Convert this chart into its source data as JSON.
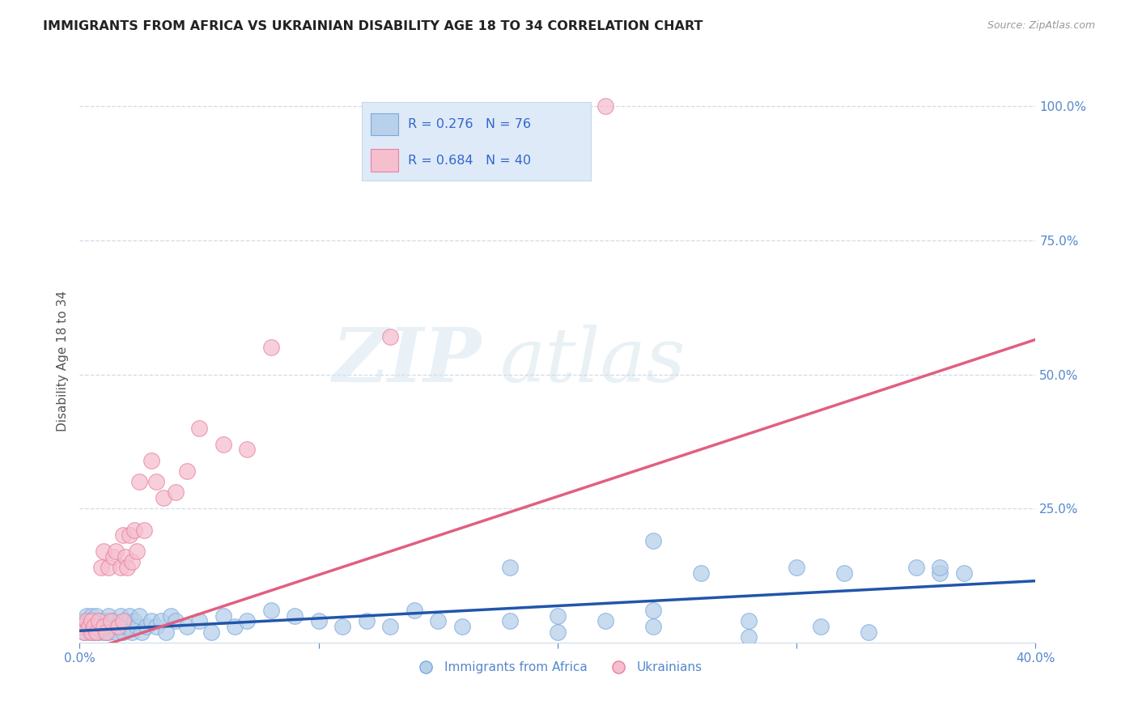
{
  "title": "IMMIGRANTS FROM AFRICA VS UKRAINIAN DISABILITY AGE 18 TO 34 CORRELATION CHART",
  "source": "Source: ZipAtlas.com",
  "ylabel": "Disability Age 18 to 34",
  "xlim": [
    0.0,
    0.4
  ],
  "ylim": [
    0.0,
    1.05
  ],
  "xtick_labels": [
    "0.0%",
    "",
    "",
    "",
    "40.0%"
  ],
  "xtick_vals": [
    0.0,
    0.1,
    0.2,
    0.3,
    0.4
  ],
  "ytick_labels_right": [
    "100.0%",
    "75.0%",
    "50.0%",
    "25.0%"
  ],
  "ytick_vals_right": [
    1.0,
    0.75,
    0.5,
    0.25
  ],
  "watermark_zip": "ZIP",
  "watermark_atlas": "atlas",
  "series1_label": "Immigrants from Africa",
  "series1_color": "#b8d0ea",
  "series1_edge_color": "#7aaadd",
  "series1_line_color": "#2255aa",
  "series1_R": 0.276,
  "series1_N": 76,
  "series2_label": "Ukrainians",
  "series2_color": "#f5bfce",
  "series2_edge_color": "#e880a0",
  "series2_line_color": "#e06080",
  "series2_R": 0.684,
  "series2_N": 40,
  "legend_box_color": "#deeaf8",
  "legend_text_color": "#3366cc",
  "title_color": "#222222",
  "axis_color": "#5588cc",
  "grid_color": "#d0dde8",
  "background_color": "#ffffff",
  "series1_x": [
    0.001,
    0.002,
    0.002,
    0.003,
    0.003,
    0.004,
    0.004,
    0.005,
    0.005,
    0.006,
    0.006,
    0.007,
    0.007,
    0.008,
    0.008,
    0.009,
    0.01,
    0.01,
    0.011,
    0.012,
    0.012,
    0.013,
    0.014,
    0.015,
    0.016,
    0.017,
    0.018,
    0.019,
    0.02,
    0.021,
    0.022,
    0.023,
    0.024,
    0.025,
    0.026,
    0.028,
    0.03,
    0.032,
    0.034,
    0.036,
    0.038,
    0.04,
    0.045,
    0.05,
    0.055,
    0.06,
    0.065,
    0.07,
    0.08,
    0.09,
    0.1,
    0.11,
    0.12,
    0.13,
    0.14,
    0.15,
    0.16,
    0.18,
    0.2,
    0.22,
    0.24,
    0.26,
    0.28,
    0.24,
    0.3,
    0.31,
    0.32,
    0.33,
    0.35,
    0.36,
    0.24,
    0.18,
    0.2,
    0.28,
    0.36,
    0.37
  ],
  "series1_y": [
    0.03,
    0.02,
    0.04,
    0.03,
    0.05,
    0.02,
    0.04,
    0.03,
    0.05,
    0.02,
    0.04,
    0.03,
    0.05,
    0.02,
    0.03,
    0.04,
    0.02,
    0.03,
    0.04,
    0.02,
    0.05,
    0.03,
    0.04,
    0.02,
    0.03,
    0.05,
    0.02,
    0.04,
    0.03,
    0.05,
    0.02,
    0.04,
    0.03,
    0.05,
    0.02,
    0.03,
    0.04,
    0.03,
    0.04,
    0.02,
    0.05,
    0.04,
    0.03,
    0.04,
    0.02,
    0.05,
    0.03,
    0.04,
    0.06,
    0.05,
    0.04,
    0.03,
    0.04,
    0.03,
    0.06,
    0.04,
    0.03,
    0.04,
    0.05,
    0.04,
    0.06,
    0.13,
    0.04,
    0.19,
    0.14,
    0.03,
    0.13,
    0.02,
    0.14,
    0.13,
    0.03,
    0.14,
    0.02,
    0.01,
    0.14,
    0.13
  ],
  "series2_x": [
    0.001,
    0.002,
    0.003,
    0.004,
    0.005,
    0.005,
    0.006,
    0.007,
    0.008,
    0.009,
    0.01,
    0.01,
    0.011,
    0.012,
    0.013,
    0.014,
    0.015,
    0.016,
    0.017,
    0.018,
    0.018,
    0.019,
    0.02,
    0.021,
    0.022,
    0.023,
    0.024,
    0.025,
    0.027,
    0.03,
    0.032,
    0.035,
    0.04,
    0.045,
    0.05,
    0.06,
    0.07,
    0.08,
    0.13,
    0.22
  ],
  "series2_y": [
    0.03,
    0.02,
    0.04,
    0.03,
    0.02,
    0.04,
    0.03,
    0.02,
    0.04,
    0.14,
    0.03,
    0.17,
    0.02,
    0.14,
    0.04,
    0.16,
    0.17,
    0.03,
    0.14,
    0.04,
    0.2,
    0.16,
    0.14,
    0.2,
    0.15,
    0.21,
    0.17,
    0.3,
    0.21,
    0.34,
    0.3,
    0.27,
    0.28,
    0.32,
    0.4,
    0.37,
    0.36,
    0.55,
    0.57,
    1.0
  ],
  "line1_x0": 0.0,
  "line1_y0": 0.022,
  "line1_x1": 0.4,
  "line1_y1": 0.115,
  "line2_x0": 0.0,
  "line2_y0": -0.02,
  "line2_x1": 0.4,
  "line2_y1": 0.565
}
